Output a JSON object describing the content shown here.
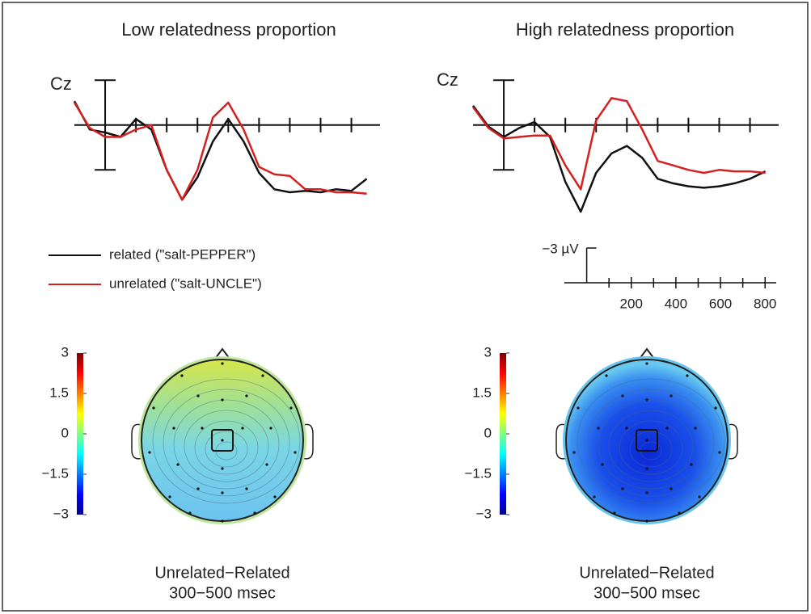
{
  "chart_data": [
    {
      "type": "line",
      "title": "Low relatedness proportion",
      "annotation": "Cz",
      "x": [
        -100,
        -50,
        0,
        50,
        100,
        150,
        200,
        250,
        300,
        350,
        400,
        450,
        500,
        550,
        600,
        650,
        700,
        750,
        800,
        850
      ],
      "xlim": [
        -100,
        880
      ],
      "ylim": [
        6.5,
        -3.5
      ],
      "yticks": [
        -3,
        3
      ],
      "xticks": [
        100,
        200,
        300,
        400,
        500,
        600,
        700,
        800
      ],
      "series": [
        {
          "name": "related (\"salt-PEPPER\")",
          "color": "#111111",
          "values": [
            -1.6,
            0.3,
            0.5,
            0.8,
            -0.4,
            0.3,
            3.0,
            5.0,
            3.5,
            1.1,
            -0.4,
            1.1,
            3.2,
            4.3,
            4.5,
            4.4,
            4.5,
            4.3,
            4.4,
            3.6
          ]
        },
        {
          "name": "unrelated (\"salt-UNCLE\")",
          "color": "#d42020",
          "values": [
            -1.5,
            0.2,
            0.8,
            0.8,
            0.3,
            0.0,
            3.0,
            5.0,
            3.0,
            -0.5,
            -1.5,
            0.3,
            2.8,
            3.3,
            3.4,
            4.3,
            4.3,
            4.5,
            4.5,
            4.6
          ]
        }
      ]
    },
    {
      "type": "line",
      "title": "High relatedness proportion",
      "annotation": "Cz",
      "x": [
        -100,
        -50,
        0,
        50,
        100,
        150,
        200,
        250,
        300,
        350,
        400,
        450,
        500,
        550,
        600,
        650,
        700,
        750,
        800,
        850
      ],
      "xlim": [
        -100,
        880
      ],
      "ylim": [
        6.5,
        -3.5
      ],
      "yticks": [
        -3,
        3
      ],
      "xticks": [
        100,
        200,
        300,
        400,
        500,
        600,
        700,
        800
      ],
      "series": [
        {
          "color": "#111111",
          "values": [
            -1.3,
            0.1,
            0.8,
            0.2,
            -0.2,
            0.8,
            3.8,
            5.8,
            3.2,
            1.9,
            1.4,
            2.2,
            3.6,
            3.9,
            4.1,
            4.2,
            4.1,
            3.9,
            3.6,
            3.1
          ]
        },
        {
          "color": "#d42020",
          "values": [
            -1.2,
            0.2,
            0.9,
            0.8,
            0.7,
            0.7,
            2.7,
            4.3,
            -0.3,
            -1.8,
            -1.6,
            0.3,
            2.4,
            2.7,
            3.0,
            3.2,
            3.0,
            3.1,
            3.1,
            3.2
          ]
        }
      ],
      "scale_bar": {
        "xlim": [
          -100,
          850
        ],
        "xticks": [
          200,
          400,
          600,
          800
        ],
        "xminorticks": [
          100,
          300,
          500,
          700
        ],
        "ylim": [
          0,
          -3
        ],
        "yticks": [
          {
            "value": -3,
            "label": "−3 µV"
          }
        ]
      }
    },
    {
      "type": "topomap",
      "caption": [
        "Unrelated−Related",
        "300−500 msec"
      ],
      "colormap": "jet",
      "clim": [
        -3,
        3
      ],
      "cticks": [
        3,
        1.5,
        0,
        {
          "value": -1.5,
          "label": "−1.5"
        },
        {
          "value": -3,
          "label": "−3"
        }
      ]
    },
    {
      "type": "topomap",
      "caption": [
        "Unrelated−Related",
        "300−500 msec"
      ],
      "colormap": "jet",
      "clim": [
        -3,
        3
      ],
      "cticks": [
        3,
        1.5,
        0,
        {
          "value": -1.5,
          "label": "−1.5"
        },
        {
          "value": -3,
          "label": "−3"
        }
      ]
    }
  ]
}
